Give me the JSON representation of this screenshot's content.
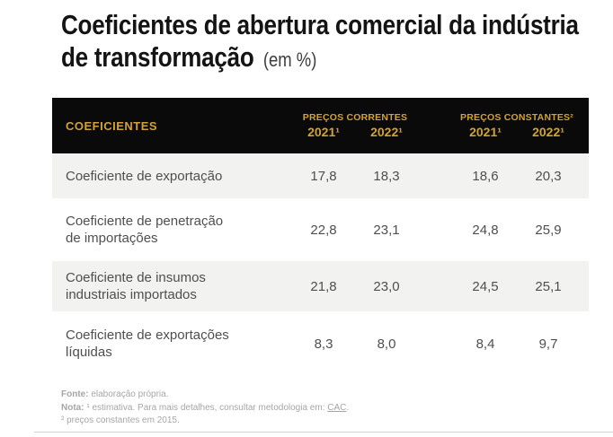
{
  "title": {
    "main": "Coeficientes de abertura comercial da indústria de transformação",
    "suffix": "(em %)"
  },
  "table": {
    "header": {
      "label": "COEFICIENTES",
      "group1": "PREÇOS CORRENTES",
      "group2": "PREÇOS CONSTANTES²",
      "years": [
        "2021¹",
        "2022¹",
        "2021¹",
        "2022¹"
      ]
    },
    "rows": [
      {
        "label": "Coeficiente de exportação",
        "values": [
          "17,8",
          "18,3",
          "18,6",
          "20,3"
        ]
      },
      {
        "label": "Coeficiente de penetração de importações",
        "values": [
          "22,8",
          "23,1",
          "24,8",
          "25,9"
        ]
      },
      {
        "label": "Coeficiente de insumos industriais importados",
        "values": [
          "21,8",
          "23,0",
          "24,5",
          "25,1"
        ]
      },
      {
        "label": "Coeficiente de exportações líquidas",
        "values": [
          "8,3",
          "8,0",
          "8,4",
          "9,7"
        ]
      }
    ]
  },
  "footnotes": {
    "fonte_label": "Fonte:",
    "fonte_text": "elaboração própria.",
    "nota_label": "Nota:",
    "nota_text": "¹ estimativa. Para mais detalhes, consultar metodologia em:",
    "nota_link": "CAC",
    "nota_period": ".",
    "nota2_text": "² preços constantes em 2015."
  },
  "colors": {
    "header_bg": "#0a0a0a",
    "header_gold": "#d0a239",
    "row_stripe": "#f2f2f0",
    "body_text": "#4f4f4f",
    "footnote_text": "#a6a6a6"
  },
  "chart_data": {
    "type": "table",
    "title": "Coeficientes de abertura comercial da indústria de transformação (em %)",
    "columns": [
      "Coeficientes",
      "Preços correntes 2021",
      "Preços correntes 2022",
      "Preços constantes 2021",
      "Preços constantes 2022"
    ],
    "rows": [
      [
        "Coeficiente de exportação",
        17.8,
        18.3,
        18.6,
        20.3
      ],
      [
        "Coeficiente de penetração de importações",
        22.8,
        23.1,
        24.8,
        25.9
      ],
      [
        "Coeficiente de insumos industriais importados",
        21.8,
        23.0,
        24.5,
        25.1
      ],
      [
        "Coeficiente de exportações líquidas",
        8.3,
        8.0,
        8.4,
        9.7
      ]
    ],
    "notes": [
      "¹ estimativa",
      "² preços constantes em 2015",
      "Fonte: elaboração própria"
    ]
  }
}
